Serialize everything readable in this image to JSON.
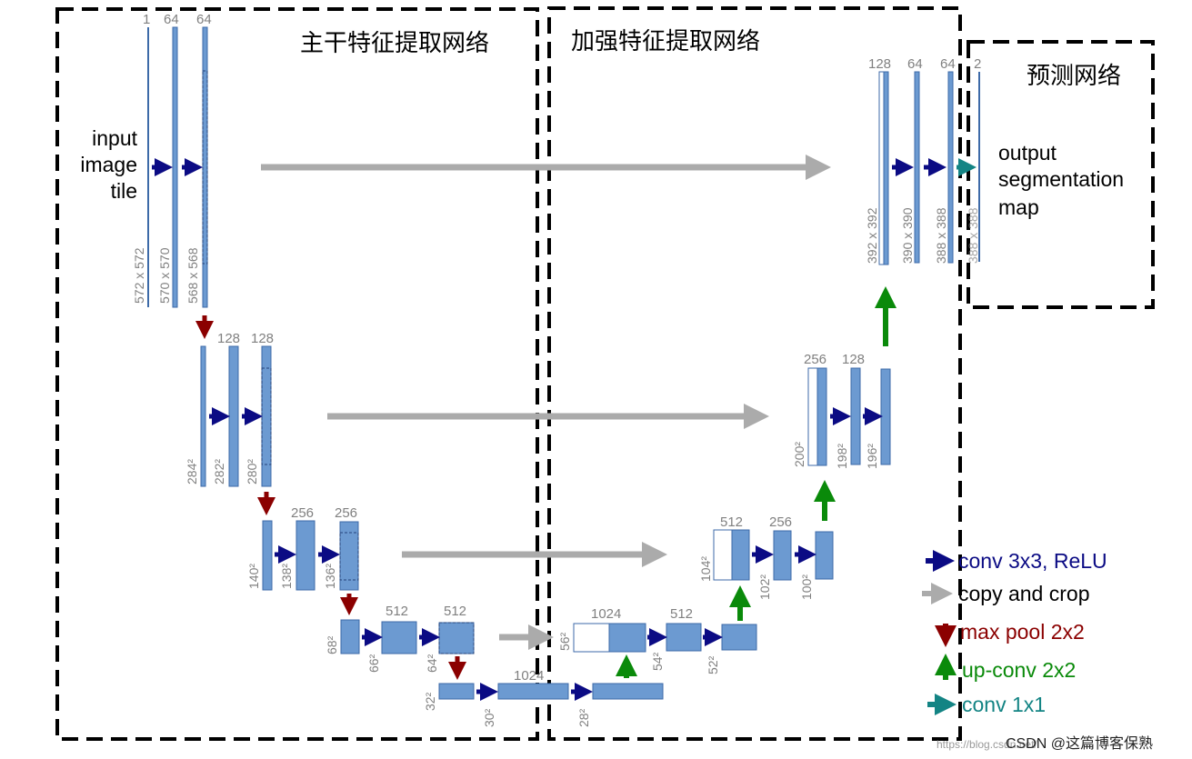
{
  "sections": {
    "encoder": "主干特征提取网络",
    "decoder": "加强特征提取网络",
    "head": "预测网络"
  },
  "io": {
    "input": [
      "input",
      "image",
      "tile"
    ],
    "output": [
      "output",
      "segmentation",
      "map"
    ]
  },
  "channels": {
    "e1": [
      "1",
      "64",
      "64"
    ],
    "e2": [
      "128",
      "128"
    ],
    "e3": [
      "256",
      "256"
    ],
    "e4": [
      "512",
      "512"
    ],
    "bottleneck": "1024",
    "d4": [
      "1024",
      "512"
    ],
    "d3": [
      "512",
      "256"
    ],
    "d2": [
      "256",
      "128"
    ],
    "d1": [
      "128",
      "64",
      "64",
      "2"
    ]
  },
  "sizes": {
    "e1": [
      "572 x 572",
      "570 x 570",
      "568 x 568"
    ],
    "e2": [
      "284²",
      "282²",
      "280²"
    ],
    "e3": [
      "140²",
      "138²",
      "136²"
    ],
    "e4": [
      "68²",
      "66²",
      "64²"
    ],
    "bottleneck": [
      "32²",
      "30²",
      "28²"
    ],
    "d4": [
      "56²",
      "54²",
      "52²"
    ],
    "d3": [
      "104²",
      "102²",
      "100²"
    ],
    "d2": [
      "200²",
      "198²",
      "196²"
    ],
    "d1": [
      "392 x 392",
      "390 x 390",
      "388 x 388",
      "388 x 388"
    ]
  },
  "legend": [
    {
      "label": "conv 3x3, ReLU",
      "color": "#0b0b84",
      "icon": "arrow-right-icon"
    },
    {
      "label": "copy and crop",
      "color": "#ababab",
      "icon": "arrow-right-icon"
    },
    {
      "label": "max pool 2x2",
      "color": "#8b0000",
      "icon": "arrow-down-icon"
    },
    {
      "label": "up-conv 2x2",
      "color": "#0a8a0a",
      "icon": "arrow-up-icon"
    },
    {
      "label": "conv 1x1",
      "color": "#138484",
      "icon": "arrow-right-icon"
    }
  ],
  "watermark": {
    "url": "https://blog.csdn.net/",
    "text": "CSDN @这篇博客保熟"
  }
}
